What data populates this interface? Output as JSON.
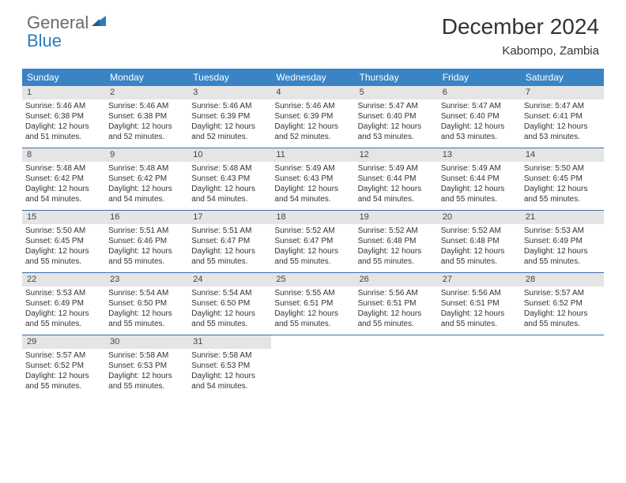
{
  "brand": {
    "part1": "General",
    "part2": "Blue"
  },
  "title": "December 2024",
  "location": "Kabompo, Zambia",
  "colors": {
    "header_bg": "#3a84c5",
    "header_text": "#ffffff",
    "daynum_bg": "#e5e5e5",
    "row_divider": "#3a6ea8",
    "logo_gray": "#6a6a6a",
    "logo_blue": "#2a7bbf"
  },
  "day_headers": [
    "Sunday",
    "Monday",
    "Tuesday",
    "Wednesday",
    "Thursday",
    "Friday",
    "Saturday"
  ],
  "weeks": [
    [
      {
        "n": "1",
        "sr": "Sunrise: 5:46 AM",
        "ss": "Sunset: 6:38 PM",
        "dl": "Daylight: 12 hours and 51 minutes."
      },
      {
        "n": "2",
        "sr": "Sunrise: 5:46 AM",
        "ss": "Sunset: 6:38 PM",
        "dl": "Daylight: 12 hours and 52 minutes."
      },
      {
        "n": "3",
        "sr": "Sunrise: 5:46 AM",
        "ss": "Sunset: 6:39 PM",
        "dl": "Daylight: 12 hours and 52 minutes."
      },
      {
        "n": "4",
        "sr": "Sunrise: 5:46 AM",
        "ss": "Sunset: 6:39 PM",
        "dl": "Daylight: 12 hours and 52 minutes."
      },
      {
        "n": "5",
        "sr": "Sunrise: 5:47 AM",
        "ss": "Sunset: 6:40 PM",
        "dl": "Daylight: 12 hours and 53 minutes."
      },
      {
        "n": "6",
        "sr": "Sunrise: 5:47 AM",
        "ss": "Sunset: 6:40 PM",
        "dl": "Daylight: 12 hours and 53 minutes."
      },
      {
        "n": "7",
        "sr": "Sunrise: 5:47 AM",
        "ss": "Sunset: 6:41 PM",
        "dl": "Daylight: 12 hours and 53 minutes."
      }
    ],
    [
      {
        "n": "8",
        "sr": "Sunrise: 5:48 AM",
        "ss": "Sunset: 6:42 PM",
        "dl": "Daylight: 12 hours and 54 minutes."
      },
      {
        "n": "9",
        "sr": "Sunrise: 5:48 AM",
        "ss": "Sunset: 6:42 PM",
        "dl": "Daylight: 12 hours and 54 minutes."
      },
      {
        "n": "10",
        "sr": "Sunrise: 5:48 AM",
        "ss": "Sunset: 6:43 PM",
        "dl": "Daylight: 12 hours and 54 minutes."
      },
      {
        "n": "11",
        "sr": "Sunrise: 5:49 AM",
        "ss": "Sunset: 6:43 PM",
        "dl": "Daylight: 12 hours and 54 minutes."
      },
      {
        "n": "12",
        "sr": "Sunrise: 5:49 AM",
        "ss": "Sunset: 6:44 PM",
        "dl": "Daylight: 12 hours and 54 minutes."
      },
      {
        "n": "13",
        "sr": "Sunrise: 5:49 AM",
        "ss": "Sunset: 6:44 PM",
        "dl": "Daylight: 12 hours and 55 minutes."
      },
      {
        "n": "14",
        "sr": "Sunrise: 5:50 AM",
        "ss": "Sunset: 6:45 PM",
        "dl": "Daylight: 12 hours and 55 minutes."
      }
    ],
    [
      {
        "n": "15",
        "sr": "Sunrise: 5:50 AM",
        "ss": "Sunset: 6:45 PM",
        "dl": "Daylight: 12 hours and 55 minutes."
      },
      {
        "n": "16",
        "sr": "Sunrise: 5:51 AM",
        "ss": "Sunset: 6:46 PM",
        "dl": "Daylight: 12 hours and 55 minutes."
      },
      {
        "n": "17",
        "sr": "Sunrise: 5:51 AM",
        "ss": "Sunset: 6:47 PM",
        "dl": "Daylight: 12 hours and 55 minutes."
      },
      {
        "n": "18",
        "sr": "Sunrise: 5:52 AM",
        "ss": "Sunset: 6:47 PM",
        "dl": "Daylight: 12 hours and 55 minutes."
      },
      {
        "n": "19",
        "sr": "Sunrise: 5:52 AM",
        "ss": "Sunset: 6:48 PM",
        "dl": "Daylight: 12 hours and 55 minutes."
      },
      {
        "n": "20",
        "sr": "Sunrise: 5:52 AM",
        "ss": "Sunset: 6:48 PM",
        "dl": "Daylight: 12 hours and 55 minutes."
      },
      {
        "n": "21",
        "sr": "Sunrise: 5:53 AM",
        "ss": "Sunset: 6:49 PM",
        "dl": "Daylight: 12 hours and 55 minutes."
      }
    ],
    [
      {
        "n": "22",
        "sr": "Sunrise: 5:53 AM",
        "ss": "Sunset: 6:49 PM",
        "dl": "Daylight: 12 hours and 55 minutes."
      },
      {
        "n": "23",
        "sr": "Sunrise: 5:54 AM",
        "ss": "Sunset: 6:50 PM",
        "dl": "Daylight: 12 hours and 55 minutes."
      },
      {
        "n": "24",
        "sr": "Sunrise: 5:54 AM",
        "ss": "Sunset: 6:50 PM",
        "dl": "Daylight: 12 hours and 55 minutes."
      },
      {
        "n": "25",
        "sr": "Sunrise: 5:55 AM",
        "ss": "Sunset: 6:51 PM",
        "dl": "Daylight: 12 hours and 55 minutes."
      },
      {
        "n": "26",
        "sr": "Sunrise: 5:56 AM",
        "ss": "Sunset: 6:51 PM",
        "dl": "Daylight: 12 hours and 55 minutes."
      },
      {
        "n": "27",
        "sr": "Sunrise: 5:56 AM",
        "ss": "Sunset: 6:51 PM",
        "dl": "Daylight: 12 hours and 55 minutes."
      },
      {
        "n": "28",
        "sr": "Sunrise: 5:57 AM",
        "ss": "Sunset: 6:52 PM",
        "dl": "Daylight: 12 hours and 55 minutes."
      }
    ],
    [
      {
        "n": "29",
        "sr": "Sunrise: 5:57 AM",
        "ss": "Sunset: 6:52 PM",
        "dl": "Daylight: 12 hours and 55 minutes."
      },
      {
        "n": "30",
        "sr": "Sunrise: 5:58 AM",
        "ss": "Sunset: 6:53 PM",
        "dl": "Daylight: 12 hours and 55 minutes."
      },
      {
        "n": "31",
        "sr": "Sunrise: 5:58 AM",
        "ss": "Sunset: 6:53 PM",
        "dl": "Daylight: 12 hours and 54 minutes."
      },
      null,
      null,
      null,
      null
    ]
  ]
}
